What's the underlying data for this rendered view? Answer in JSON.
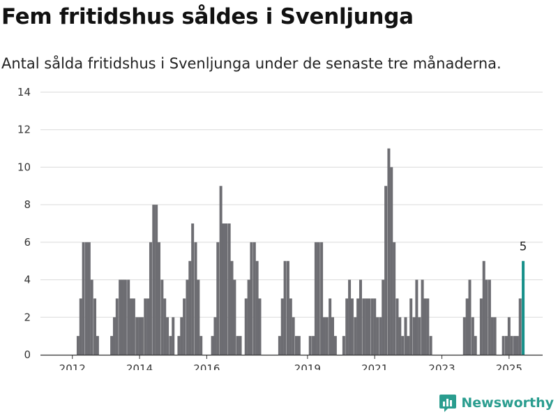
{
  "title": "Fem fritidshus såldes i Svenljunga",
  "subtitle": "Antal sålda fritidshus i Svenljunga under de senaste tre månaderna.",
  "brand": {
    "name": "Newsworthy",
    "icon": "bar-chart-logo-icon",
    "color": "#2a9d8f"
  },
  "chart_data": {
    "type": "bar",
    "x_range": [
      2011.05,
      2026.0
    ],
    "ylim": [
      0,
      14
    ],
    "y_ticks": [
      0,
      2,
      4,
      6,
      8,
      10,
      12,
      14
    ],
    "x_ticks": [
      {
        "label": "2012",
        "value": 2012.0
      },
      {
        "label": "2014",
        "value": 2014.0
      },
      {
        "label": "2016",
        "value": 2016.0
      },
      {
        "label": "2019",
        "value": 2019.0
      },
      {
        "label": "2021",
        "value": 2021.0
      },
      {
        "label": "2023",
        "value": 2023.0
      },
      {
        "label": "2025",
        "value": 2025.0
      }
    ],
    "bar_color": "#6d6d72",
    "highlight_color": "#17908a",
    "grid": true,
    "highlight_label": "5",
    "bars": [
      {
        "x": 2012.17,
        "y": 1
      },
      {
        "x": 2012.25,
        "y": 3
      },
      {
        "x": 2012.33,
        "y": 6
      },
      {
        "x": 2012.42,
        "y": 6
      },
      {
        "x": 2012.5,
        "y": 6
      },
      {
        "x": 2012.58,
        "y": 4
      },
      {
        "x": 2012.67,
        "y": 3
      },
      {
        "x": 2012.75,
        "y": 1
      },
      {
        "x": 2013.17,
        "y": 1
      },
      {
        "x": 2013.25,
        "y": 2
      },
      {
        "x": 2013.33,
        "y": 3
      },
      {
        "x": 2013.42,
        "y": 4
      },
      {
        "x": 2013.5,
        "y": 4
      },
      {
        "x": 2013.58,
        "y": 4
      },
      {
        "x": 2013.67,
        "y": 4
      },
      {
        "x": 2013.75,
        "y": 3
      },
      {
        "x": 2013.83,
        "y": 3
      },
      {
        "x": 2013.92,
        "y": 2
      },
      {
        "x": 2014.0,
        "y": 2
      },
      {
        "x": 2014.08,
        "y": 2
      },
      {
        "x": 2014.17,
        "y": 3
      },
      {
        "x": 2014.25,
        "y": 3
      },
      {
        "x": 2014.33,
        "y": 6
      },
      {
        "x": 2014.42,
        "y": 8
      },
      {
        "x": 2014.5,
        "y": 8
      },
      {
        "x": 2014.58,
        "y": 6
      },
      {
        "x": 2014.67,
        "y": 4
      },
      {
        "x": 2014.75,
        "y": 3
      },
      {
        "x": 2014.83,
        "y": 2
      },
      {
        "x": 2014.92,
        "y": 1
      },
      {
        "x": 2015.0,
        "y": 2
      },
      {
        "x": 2015.17,
        "y": 1
      },
      {
        "x": 2015.25,
        "y": 2
      },
      {
        "x": 2015.33,
        "y": 3
      },
      {
        "x": 2015.42,
        "y": 4
      },
      {
        "x": 2015.5,
        "y": 5
      },
      {
        "x": 2015.58,
        "y": 7
      },
      {
        "x": 2015.67,
        "y": 6
      },
      {
        "x": 2015.75,
        "y": 4
      },
      {
        "x": 2015.83,
        "y": 1
      },
      {
        "x": 2016.17,
        "y": 1
      },
      {
        "x": 2016.25,
        "y": 2
      },
      {
        "x": 2016.33,
        "y": 6
      },
      {
        "x": 2016.42,
        "y": 9
      },
      {
        "x": 2016.5,
        "y": 7
      },
      {
        "x": 2016.58,
        "y": 7
      },
      {
        "x": 2016.67,
        "y": 7
      },
      {
        "x": 2016.75,
        "y": 5
      },
      {
        "x": 2016.83,
        "y": 4
      },
      {
        "x": 2016.92,
        "y": 1
      },
      {
        "x": 2017.0,
        "y": 1
      },
      {
        "x": 2017.17,
        "y": 3
      },
      {
        "x": 2017.25,
        "y": 4
      },
      {
        "x": 2017.33,
        "y": 6
      },
      {
        "x": 2017.42,
        "y": 6
      },
      {
        "x": 2017.5,
        "y": 5
      },
      {
        "x": 2017.58,
        "y": 3
      },
      {
        "x": 2018.17,
        "y": 1
      },
      {
        "x": 2018.25,
        "y": 3
      },
      {
        "x": 2018.33,
        "y": 5
      },
      {
        "x": 2018.42,
        "y": 5
      },
      {
        "x": 2018.5,
        "y": 3
      },
      {
        "x": 2018.58,
        "y": 2
      },
      {
        "x": 2018.67,
        "y": 1
      },
      {
        "x": 2018.75,
        "y": 1
      },
      {
        "x": 2019.08,
        "y": 1
      },
      {
        "x": 2019.17,
        "y": 1
      },
      {
        "x": 2019.25,
        "y": 6
      },
      {
        "x": 2019.33,
        "y": 6
      },
      {
        "x": 2019.42,
        "y": 6
      },
      {
        "x": 2019.5,
        "y": 2
      },
      {
        "x": 2019.58,
        "y": 2
      },
      {
        "x": 2019.67,
        "y": 3
      },
      {
        "x": 2019.75,
        "y": 2
      },
      {
        "x": 2019.83,
        "y": 1
      },
      {
        "x": 2020.08,
        "y": 1
      },
      {
        "x": 2020.17,
        "y": 3
      },
      {
        "x": 2020.25,
        "y": 4
      },
      {
        "x": 2020.33,
        "y": 3
      },
      {
        "x": 2020.42,
        "y": 2
      },
      {
        "x": 2020.5,
        "y": 3
      },
      {
        "x": 2020.58,
        "y": 4
      },
      {
        "x": 2020.67,
        "y": 3
      },
      {
        "x": 2020.75,
        "y": 3
      },
      {
        "x": 2020.83,
        "y": 3
      },
      {
        "x": 2020.92,
        "y": 3
      },
      {
        "x": 2021.0,
        "y": 3
      },
      {
        "x": 2021.08,
        "y": 2
      },
      {
        "x": 2021.17,
        "y": 2
      },
      {
        "x": 2021.25,
        "y": 4
      },
      {
        "x": 2021.33,
        "y": 9
      },
      {
        "x": 2021.42,
        "y": 11
      },
      {
        "x": 2021.5,
        "y": 10
      },
      {
        "x": 2021.58,
        "y": 6
      },
      {
        "x": 2021.67,
        "y": 3
      },
      {
        "x": 2021.75,
        "y": 2
      },
      {
        "x": 2021.83,
        "y": 1
      },
      {
        "x": 2021.92,
        "y": 2
      },
      {
        "x": 2022.0,
        "y": 1
      },
      {
        "x": 2022.08,
        "y": 3
      },
      {
        "x": 2022.17,
        "y": 2
      },
      {
        "x": 2022.25,
        "y": 4
      },
      {
        "x": 2022.33,
        "y": 2
      },
      {
        "x": 2022.42,
        "y": 4
      },
      {
        "x": 2022.5,
        "y": 3
      },
      {
        "x": 2022.58,
        "y": 3
      },
      {
        "x": 2022.67,
        "y": 1
      },
      {
        "x": 2023.67,
        "y": 2
      },
      {
        "x": 2023.75,
        "y": 3
      },
      {
        "x": 2023.83,
        "y": 4
      },
      {
        "x": 2023.92,
        "y": 2
      },
      {
        "x": 2024.0,
        "y": 1
      },
      {
        "x": 2024.17,
        "y": 3
      },
      {
        "x": 2024.25,
        "y": 5
      },
      {
        "x": 2024.33,
        "y": 4
      },
      {
        "x": 2024.42,
        "y": 4
      },
      {
        "x": 2024.5,
        "y": 2
      },
      {
        "x": 2024.58,
        "y": 2
      },
      {
        "x": 2024.83,
        "y": 1
      },
      {
        "x": 2024.92,
        "y": 1
      },
      {
        "x": 2025.0,
        "y": 2
      },
      {
        "x": 2025.08,
        "y": 1
      },
      {
        "x": 2025.17,
        "y": 1
      },
      {
        "x": 2025.25,
        "y": 1
      },
      {
        "x": 2025.33,
        "y": 3
      },
      {
        "x": 2025.42,
        "y": 5,
        "highlight": true
      }
    ]
  }
}
